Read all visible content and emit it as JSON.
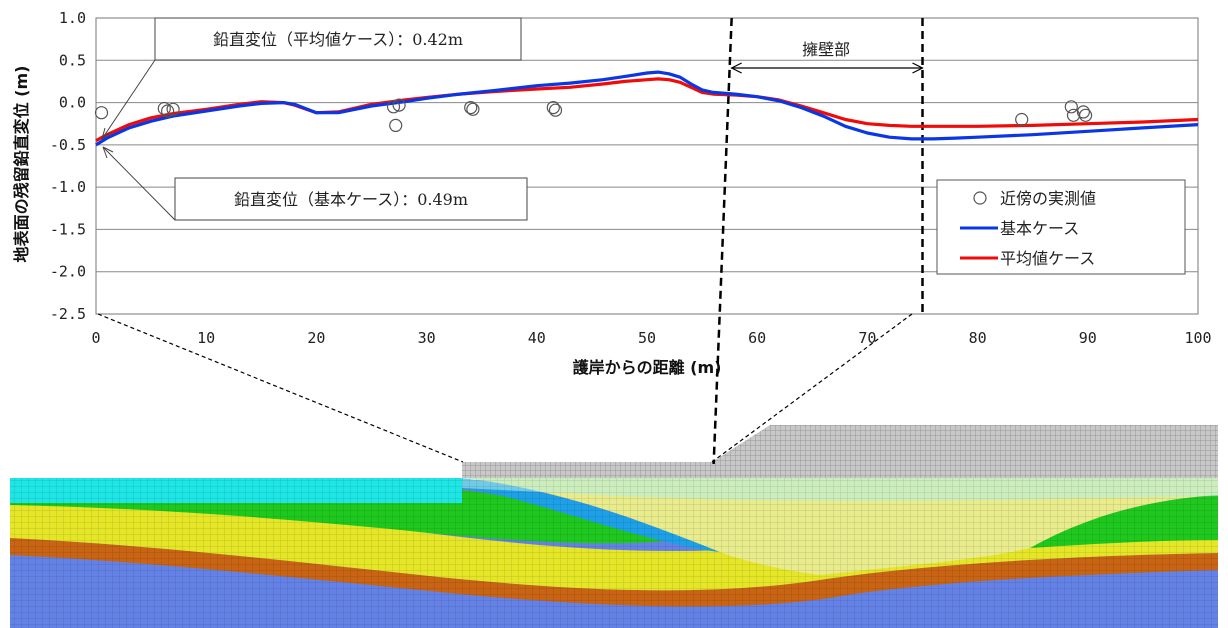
{
  "chart_data": {
    "type": "line",
    "xlabel": "護岸からの距離 (m)",
    "ylabel": "地表面の残留鉛直変位 (m)",
    "xlim": [
      0,
      100
    ],
    "ylim": [
      -2.5,
      1.0
    ],
    "x_ticks": [
      "0",
      "10",
      "20",
      "30",
      "40",
      "50",
      "60",
      "70",
      "80",
      "90",
      "100"
    ],
    "y_ticks": [
      "1.0",
      "0.5",
      "0.0",
      "-0.5",
      "-1.0",
      "-1.5",
      "-2.0",
      "-2.5"
    ],
    "grid": "horizontal",
    "legend_position": "right",
    "series": [
      {
        "name": "基本ケース",
        "color": "#0a37e6",
        "x": [
          0,
          1,
          3,
          5,
          7,
          10,
          13,
          15,
          17,
          18,
          20,
          22,
          25,
          28,
          30,
          33,
          36,
          40,
          43,
          46,
          48,
          50,
          51,
          52,
          53,
          54,
          55,
          56,
          58,
          60,
          62,
          64,
          66,
          68,
          70,
          72,
          74,
          76,
          78,
          80,
          85,
          90,
          95,
          100
        ],
        "y": [
          -0.5,
          -0.42,
          -0.3,
          -0.22,
          -0.16,
          -0.1,
          -0.04,
          -0.01,
          0.0,
          -0.02,
          -0.12,
          -0.12,
          -0.04,
          0.01,
          0.05,
          0.1,
          0.14,
          0.2,
          0.23,
          0.27,
          0.31,
          0.35,
          0.36,
          0.34,
          0.3,
          0.22,
          0.15,
          0.12,
          0.1,
          0.07,
          0.02,
          -0.06,
          -0.16,
          -0.28,
          -0.36,
          -0.41,
          -0.43,
          -0.43,
          -0.42,
          -0.41,
          -0.38,
          -0.34,
          -0.3,
          -0.26
        ]
      },
      {
        "name": "平均値ケース",
        "color": "#f00a0a",
        "x": [
          0,
          1,
          3,
          5,
          7,
          10,
          13,
          15,
          17,
          18,
          20,
          22,
          25,
          28,
          30,
          33,
          36,
          40,
          43,
          46,
          48,
          50,
          51,
          52,
          53,
          54,
          55,
          56,
          58,
          60,
          62,
          64,
          66,
          68,
          70,
          72,
          74,
          76,
          78,
          80,
          85,
          90,
          95,
          100
        ],
        "y": [
          -0.45,
          -0.38,
          -0.26,
          -0.18,
          -0.13,
          -0.08,
          -0.02,
          0.01,
          0.0,
          -0.03,
          -0.12,
          -0.11,
          -0.02,
          0.03,
          0.06,
          0.1,
          0.13,
          0.16,
          0.18,
          0.22,
          0.25,
          0.27,
          0.28,
          0.27,
          0.24,
          0.18,
          0.12,
          0.1,
          0.09,
          0.07,
          0.03,
          -0.04,
          -0.12,
          -0.2,
          -0.25,
          -0.27,
          -0.28,
          -0.28,
          -0.28,
          -0.28,
          -0.27,
          -0.25,
          -0.23,
          -0.2
        ]
      }
    ],
    "observed": {
      "name": "近傍の実測値",
      "points": [
        [
          0.5,
          -0.12
        ],
        [
          6.2,
          -0.07
        ],
        [
          6.5,
          -0.1
        ],
        [
          7.0,
          -0.08
        ],
        [
          27.0,
          -0.05
        ],
        [
          27.2,
          -0.27
        ],
        [
          27.5,
          -0.03
        ],
        [
          34.0,
          -0.06
        ],
        [
          34.2,
          -0.08
        ],
        [
          41.5,
          -0.06
        ],
        [
          41.7,
          -0.09
        ],
        [
          84.0,
          -0.2
        ],
        [
          88.5,
          -0.05
        ],
        [
          88.7,
          -0.15
        ],
        [
          89.6,
          -0.11
        ],
        [
          89.8,
          -0.15
        ]
      ]
    },
    "annotations": {
      "average_case": "鉛直変位（平均値ケース）：0.42m",
      "basic_case": "鉛直変位（基本ケース）：0.49m",
      "retaining_wall": "擁壁部",
      "wall_range": [
        57.5,
        75
      ]
    }
  },
  "colors": {
    "basic": "#0a37e6",
    "average": "#f00a0a",
    "cyan_layer": "#1ee6e6",
    "green_layer": "#1ec81e",
    "yellow_layer": "#e6e628",
    "orange_layer": "#c86414",
    "blue_layer": "#6482e6",
    "gray_mesh": "#b4b4b4"
  }
}
